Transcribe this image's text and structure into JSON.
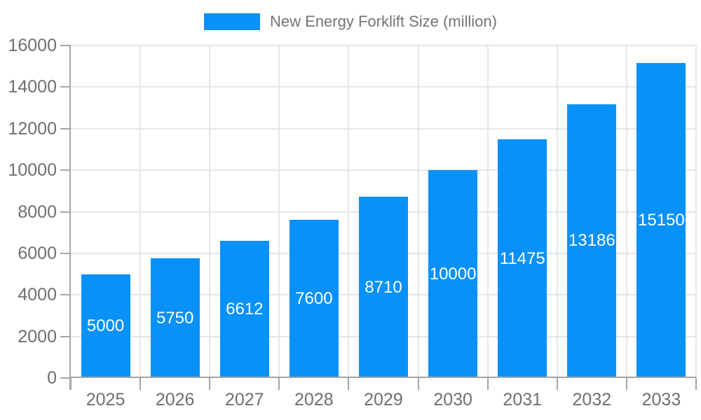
{
  "legend": {
    "label": "New Energy Forklift Size (million)"
  },
  "chart_data": {
    "type": "bar",
    "title": "New Energy Forklift Size (million)",
    "categories": [
      "2025",
      "2026",
      "2027",
      "2028",
      "2029",
      "2030",
      "2031",
      "2032",
      "2033"
    ],
    "series": [
      {
        "name": "New Energy Forklift Size (million)",
        "values": [
          5000,
          5750,
          6612,
          7600,
          8710,
          10000,
          11475,
          13186,
          15150
        ]
      }
    ],
    "xlabel": "",
    "ylabel": "",
    "ylim": [
      0,
      16000
    ],
    "yticks": [
      0,
      2000,
      4000,
      6000,
      8000,
      10000,
      12000,
      14000,
      16000
    ],
    "grid": true,
    "legend_position": "top",
    "value_label_position": "inside-center",
    "colors": {
      "bar": "#0891f8",
      "grid": "#e5e5e5",
      "axis": "#a5a5a5",
      "tick_label": "#6f6f6f",
      "legend_text": "#757575",
      "value_label": "#ffffff",
      "background": "#ffffff"
    }
  }
}
